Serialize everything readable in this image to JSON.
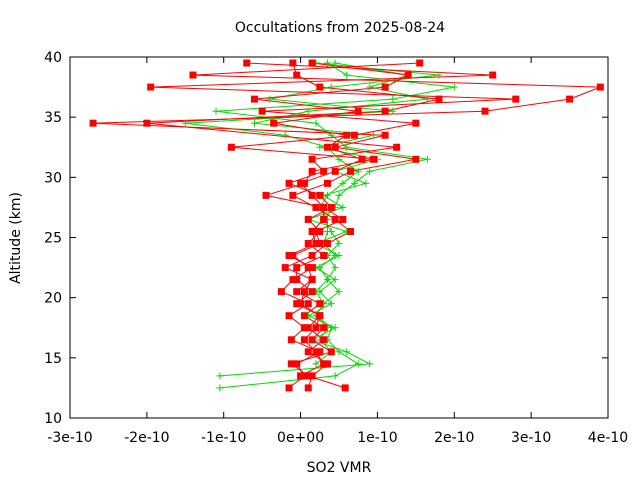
{
  "chart_data": {
    "type": "line",
    "title": "Occultations from 2025-08-24",
    "xlabel": "SO2 VMR",
    "ylabel": "Altitude (km)",
    "xlim": [
      -3e-10,
      4e-10
    ],
    "ylim": [
      10,
      40
    ],
    "x_ticks": [
      -3e-10,
      -2e-10,
      -1e-10,
      0,
      1e-10,
      2e-10,
      3e-10,
      4e-10
    ],
    "x_tick_labels": [
      "-3e-10",
      "-2e-10",
      "-1e-10",
      "0e+00",
      "1e-10",
      "2e-10",
      "3e-10",
      "4e-10"
    ],
    "y_ticks": [
      10,
      15,
      20,
      25,
      30,
      35,
      40
    ],
    "y_tick_labels": [
      "10",
      "15",
      "20",
      "25",
      "30",
      "35",
      "40"
    ],
    "grid": false,
    "legend": "none",
    "series": [
      {
        "marker": "square",
        "color": "#ff0000",
        "points": [
          [
            5.8e-11,
            12.5
          ],
          [
            1e-11,
            13.5
          ],
          [
            -1.2e-11,
            14.5
          ],
          [
            4e-11,
            15.5
          ],
          [
            1.5e-11,
            16.5
          ],
          [
            3e-11,
            17.5
          ],
          [
            5e-12,
            18.5
          ],
          [
            2.5e-11,
            19.5
          ],
          [
            -5e-12,
            20.5
          ],
          [
            1.5e-11,
            21.5
          ],
          [
            -2e-11,
            22.5
          ],
          [
            1.5e-11,
            23.5
          ],
          [
            3.5e-11,
            24.5
          ],
          [
            6.5e-11,
            25.5
          ],
          [
            4.5e-11,
            26.5
          ],
          [
            2e-11,
            27.5
          ],
          [
            -1e-11,
            28.5
          ],
          [
            3.5e-11,
            29.5
          ],
          [
            6.5e-11,
            30.5
          ],
          [
            1.5e-10,
            31.5
          ],
          [
            4.5e-11,
            32.5
          ],
          [
            1.1e-10,
            33.5
          ],
          [
            -2.7e-10,
            34.5
          ],
          [
            2.4e-10,
            35.5
          ],
          [
            3.5e-10,
            36.5
          ],
          [
            3.9e-10,
            37.5
          ],
          [
            -1.4e-10,
            38.5
          ],
          [
            1.55e-10,
            39.5
          ]
        ]
      },
      {
        "marker": "square",
        "color": "#ff0000",
        "points": [
          [
            -1.5e-11,
            12.5
          ],
          [
            5e-12,
            13.5
          ],
          [
            -5e-12,
            14.5
          ],
          [
            2.5e-11,
            15.5
          ],
          [
            -1.2e-11,
            16.5
          ],
          [
            5e-12,
            17.5
          ],
          [
            -1.5e-11,
            18.5
          ],
          [
            1e-11,
            19.5
          ],
          [
            -2.5e-11,
            20.5
          ],
          [
            -1e-11,
            21.5
          ],
          [
            1.5e-11,
            22.5
          ],
          [
            -1.5e-11,
            23.5
          ],
          [
            2e-11,
            24.5
          ],
          [
            1.5e-11,
            25.5
          ],
          [
            3e-11,
            26.5
          ],
          [
            3e-11,
            27.5
          ],
          [
            -4.5e-11,
            28.5
          ],
          [
            5e-12,
            29.5
          ],
          [
            1.5e-11,
            30.5
          ],
          [
            9.5e-11,
            31.5
          ],
          [
            -9e-11,
            32.5
          ],
          [
            7e-11,
            33.5
          ],
          [
            1.5e-10,
            34.5
          ],
          [
            -5e-11,
            35.5
          ],
          [
            2.8e-10,
            36.5
          ],
          [
            -1.95e-10,
            37.5
          ],
          [
            2.5e-10,
            38.5
          ],
          [
            -7e-11,
            39.5
          ]
        ]
      },
      {
        "marker": "square",
        "color": "#ff0000",
        "points": [
          [
            1e-11,
            12.5
          ],
          [
            1.5e-11,
            13.5
          ],
          [
            3.5e-11,
            14.5
          ],
          [
            1e-11,
            15.5
          ],
          [
            3e-11,
            16.5
          ],
          [
            1e-11,
            17.5
          ],
          [
            2.5e-11,
            18.5
          ],
          [
            -5e-12,
            19.5
          ],
          [
            1.5e-11,
            20.5
          ],
          [
            -5e-12,
            21.5
          ],
          [
            -5e-12,
            22.5
          ],
          [
            3e-11,
            23.5
          ],
          [
            1e-11,
            24.5
          ],
          [
            2.5e-11,
            25.5
          ],
          [
            1e-11,
            26.5
          ],
          [
            4e-11,
            27.5
          ],
          [
            2.5e-11,
            28.5
          ],
          [
            -1.5e-11,
            29.5
          ],
          [
            3e-11,
            30.5
          ],
          [
            1.5e-11,
            31.5
          ],
          [
            1.25e-10,
            32.5
          ],
          [
            -2e-10,
            34.5
          ],
          [
            1.1e-10,
            35.5
          ],
          [
            1.8e-10,
            36.5
          ],
          [
            2.5e-11,
            37.5
          ],
          [
            -5e-12,
            38.5
          ],
          [
            -1e-11,
            39.5
          ]
        ]
      },
      {
        "marker": "square",
        "color": "#ff0000",
        "points": [
          [
            0.0,
            13.5
          ],
          [
            3e-11,
            14.5
          ],
          [
            2e-11,
            15.5
          ],
          [
            5e-12,
            16.5
          ],
          [
            2e-11,
            17.5
          ],
          [
            2.5e-11,
            18.5
          ],
          [
            0.0,
            19.5
          ],
          [
            5e-12,
            20.5
          ],
          [
            1.5e-11,
            21.5
          ],
          [
            1e-11,
            22.5
          ],
          [
            -1e-11,
            23.5
          ],
          [
            2.5e-11,
            24.5
          ],
          [
            2e-11,
            25.5
          ],
          [
            5.5e-11,
            26.5
          ],
          [
            3e-11,
            27.5
          ],
          [
            1.5e-11,
            28.5
          ],
          [
            0.0,
            29.5
          ],
          [
            4.5e-11,
            30.5
          ],
          [
            8e-11,
            31.5
          ],
          [
            3.5e-11,
            32.5
          ],
          [
            6e-11,
            33.5
          ],
          [
            -3.5e-11,
            34.5
          ],
          [
            7.5e-11,
            35.5
          ],
          [
            -6e-11,
            36.5
          ],
          [
            1.1e-10,
            37.5
          ],
          [
            1.4e-10,
            38.5
          ],
          [
            1.5e-11,
            39.5
          ]
        ]
      },
      {
        "marker": "cross",
        "color": "#00dd00",
        "points": [
          [
            -1.05e-10,
            12.5
          ],
          [
            4.5e-11,
            13.5
          ],
          [
            7.5e-11,
            14.5
          ],
          [
            5e-11,
            15.5
          ],
          [
            3.5e-11,
            16.5
          ],
          [
            4e-11,
            17.5
          ],
          [
            2e-11,
            18.5
          ],
          [
            3e-11,
            19.5
          ],
          [
            5e-11,
            20.5
          ],
          [
            3.5e-11,
            21.5
          ],
          [
            4.5e-11,
            22.5
          ],
          [
            3.5e-11,
            23.5
          ],
          [
            5e-11,
            24.5
          ],
          [
            4e-11,
            25.5
          ],
          [
            3e-11,
            26.5
          ],
          [
            4.5e-11,
            27.5
          ],
          [
            5e-11,
            28.5
          ],
          [
            7e-11,
            29.5
          ],
          [
            9e-11,
            30.5
          ],
          [
            1.65e-10,
            31.5
          ],
          [
            6e-11,
            32.5
          ],
          [
            4e-11,
            33.5
          ],
          [
            2e-11,
            34.5
          ],
          [
            -1.1e-10,
            35.5
          ],
          [
            1.2e-10,
            36.5
          ],
          [
            2e-10,
            37.5
          ],
          [
            6e-11,
            38.5
          ],
          [
            3.5e-11,
            39.5
          ]
        ]
      },
      {
        "marker": "cross",
        "color": "#00dd00",
        "points": [
          [
            -1.05e-10,
            13.5
          ],
          [
            9e-11,
            14.5
          ],
          [
            6e-11,
            15.5
          ],
          [
            1.5e-11,
            16.5
          ],
          [
            4.5e-11,
            17.5
          ],
          [
            1e-11,
            18.5
          ],
          [
            4e-11,
            19.5
          ],
          [
            2.5e-11,
            20.5
          ],
          [
            4.5e-11,
            21.5
          ],
          [
            2e-11,
            22.5
          ],
          [
            5e-11,
            23.5
          ],
          [
            2e-11,
            24.5
          ],
          [
            6e-11,
            25.5
          ],
          [
            1e-11,
            26.5
          ],
          [
            5.5e-11,
            27.5
          ],
          [
            3e-11,
            28.5
          ],
          [
            8.5e-11,
            29.5
          ],
          [
            4.5e-11,
            30.5
          ],
          [
            1e-10,
            31.5
          ],
          [
            2.5e-11,
            32.5
          ],
          [
            9.5e-11,
            33.5
          ],
          [
            -6e-11,
            34.5
          ],
          [
            1e-11,
            35.5
          ],
          [
            1.65e-10,
            36.5
          ],
          [
            9e-11,
            37.5
          ],
          [
            1.4e-10,
            38.5
          ],
          [
            4.5e-11,
            39.5
          ]
        ]
      },
      {
        "marker": "cross",
        "color": "#00dd00",
        "points": [
          [
            2e-11,
            14.5
          ],
          [
            4e-11,
            15.5
          ],
          [
            2.5e-11,
            16.5
          ],
          [
            3.5e-11,
            17.5
          ],
          [
            2e-11,
            18.5
          ],
          [
            3e-11,
            19.5
          ],
          [
            2e-11,
            20.5
          ],
          [
            3.5e-11,
            21.5
          ],
          [
            2.5e-11,
            22.5
          ],
          [
            4.5e-11,
            23.5
          ],
          [
            3e-11,
            24.5
          ],
          [
            3.5e-11,
            25.5
          ],
          [
            3.5e-11,
            26.5
          ],
          [
            2.5e-11,
            27.5
          ],
          [
            3.5e-11,
            28.5
          ],
          [
            5.5e-11,
            29.5
          ],
          [
            7.5e-11,
            30.5
          ],
          [
            5e-11,
            31.5
          ],
          [
            3.5e-11,
            32.5
          ],
          [
            -2e-11,
            33.5
          ],
          [
            -1.5e-10,
            34.5
          ],
          [
            1.2e-10,
            35.5
          ],
          [
            -4e-11,
            36.5
          ],
          [
            4e-11,
            37.5
          ],
          [
            1.8e-10,
            38.5
          ],
          [
            2e-11,
            39.5
          ]
        ]
      }
    ]
  }
}
